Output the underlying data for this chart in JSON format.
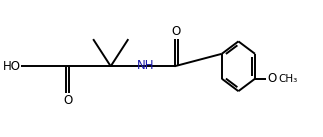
{
  "bg_color": "#ffffff",
  "bond_color": "#000000",
  "text_color": "#000000",
  "nh_color": "#1a1aaa",
  "o_color": "#cc6600",
  "line_width": 1.4,
  "figsize": [
    3.23,
    1.37
  ],
  "dpi": 100,
  "xlim": [
    0,
    10
  ],
  "ylim": [
    0,
    4.26
  ]
}
